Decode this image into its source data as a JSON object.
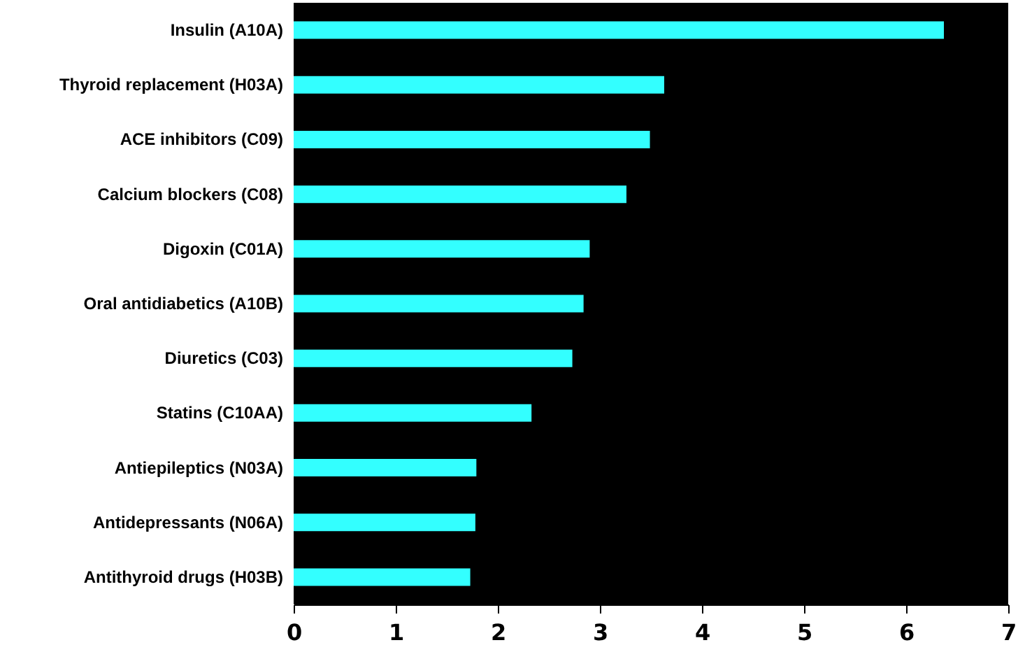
{
  "chart_data": {
    "type": "bar",
    "orientation": "horizontal",
    "categories": [
      "Insulin (A10A)",
      "Thyroid replacement (H03A)",
      "ACE inhibitors (C09)",
      "Calcium blockers (C08)",
      "Digoxin (C01A)",
      "Oral antidiabetics (A10B)",
      "Diuretics (C03)",
      "Statins (C10AA)",
      "Antiepileptics (N03A)",
      "Antidepressants (N06A)",
      "Antithyroid drugs (H03B)"
    ],
    "values": [
      6.37,
      3.63,
      3.49,
      3.26,
      2.9,
      2.84,
      2.73,
      2.33,
      1.79,
      1.78,
      1.73
    ],
    "color": "#33ffff",
    "xlim": [
      0,
      7
    ],
    "xticks": [
      0,
      1,
      2,
      3,
      4,
      5,
      6,
      7
    ],
    "grid": false
  }
}
